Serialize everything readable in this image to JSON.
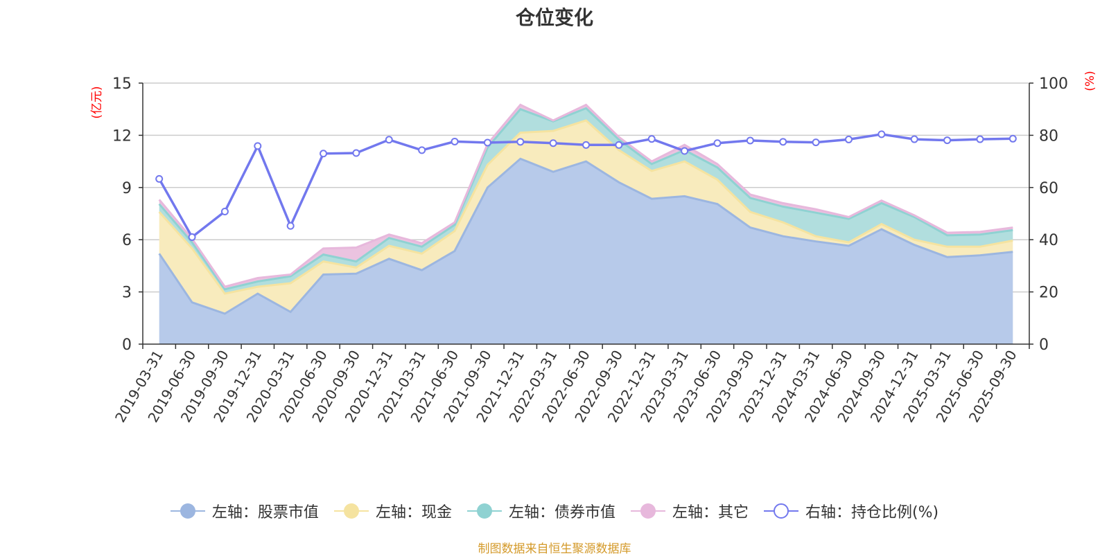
{
  "chart_data": {
    "type": "area",
    "title": "仓位变化",
    "categories": [
      "2019-03-31",
      "2019-06-30",
      "2019-09-30",
      "2019-12-31",
      "2020-03-31",
      "2020-06-30",
      "2020-09-30",
      "2020-12-31",
      "2021-03-31",
      "2021-06-30",
      "2021-09-30",
      "2021-12-31",
      "2022-03-31",
      "2022-06-30",
      "2022-09-30",
      "2022-12-31",
      "2023-03-31",
      "2023-06-30",
      "2023-09-30",
      "2023-12-31",
      "2024-03-31",
      "2024-06-30",
      "2024-09-30",
      "2024-12-31",
      "2025-03-31",
      "2025-06-30",
      "2025-09-30"
    ],
    "left_axis": {
      "label": "(亿元)",
      "ylim": [
        0,
        15
      ],
      "ticks": [
        "0",
        "3",
        "6",
        "9",
        "12",
        "15"
      ]
    },
    "right_axis": {
      "label": "(%)",
      "ylim": [
        0,
        100
      ],
      "ticks": [
        "0",
        "20",
        "40",
        "60",
        "80",
        "100"
      ]
    },
    "series": [
      {
        "name": "左轴：股票市值",
        "axis": "left",
        "stack": true,
        "color": "#9cb6e0",
        "fill": "#b7caea",
        "values": [
          5.2,
          2.4,
          1.75,
          2.9,
          1.85,
          4.0,
          4.05,
          4.9,
          4.25,
          5.35,
          9.0,
          10.65,
          9.9,
          10.5,
          9.3,
          8.35,
          8.5,
          8.05,
          6.7,
          6.2,
          5.9,
          5.65,
          6.6,
          5.7,
          5.0,
          5.1,
          5.3
        ]
      },
      {
        "name": "左轴：现金",
        "axis": "left",
        "stack": true,
        "color": "#f5e3a0",
        "fill": "#f8ebbd",
        "values": [
          2.4,
          3.1,
          1.15,
          0.4,
          1.65,
          0.75,
          0.35,
          0.75,
          0.95,
          1.15,
          1.3,
          1.5,
          2.35,
          2.35,
          1.85,
          1.6,
          2.0,
          1.4,
          0.9,
          0.8,
          0.3,
          0.2,
          0.3,
          0.3,
          0.6,
          0.5,
          0.65
        ]
      },
      {
        "name": "左轴：债券市值",
        "axis": "left",
        "stack": true,
        "color": "#8fd2d2",
        "fill": "#b1dede",
        "values": [
          0.45,
          0.35,
          0.25,
          0.3,
          0.4,
          0.4,
          0.35,
          0.45,
          0.4,
          0.35,
          1.0,
          1.35,
          0.55,
          0.7,
          0.6,
          0.4,
          0.65,
          0.7,
          0.8,
          0.9,
          1.35,
          1.35,
          1.2,
          1.3,
          0.65,
          0.7,
          0.6
        ]
      },
      {
        "name": "左轴：其它",
        "axis": "left",
        "stack": true,
        "color": "#e7b8dc",
        "fill": "#ebc3e0",
        "values": [
          0.25,
          0.2,
          0.15,
          0.2,
          0.1,
          0.35,
          0.8,
          0.2,
          0.2,
          0.15,
          0.2,
          0.25,
          0.05,
          0.2,
          0.15,
          0.15,
          0.3,
          0.2,
          0.2,
          0.2,
          0.2,
          0.1,
          0.15,
          0.1,
          0.15,
          0.15,
          0.15
        ]
      },
      {
        "name": "右轴：持仓比例(%)",
        "axis": "right",
        "stack": false,
        "color": "#7278ee",
        "values": [
          63.3,
          41.0,
          50.8,
          75.9,
          45.3,
          73.0,
          73.2,
          78.3,
          74.3,
          77.6,
          77.2,
          77.5,
          77.0,
          76.3,
          76.3,
          78.6,
          74.0,
          77.0,
          78.0,
          77.5,
          77.3,
          78.4,
          80.4,
          78.5,
          78.1,
          78.5,
          78.7
        ]
      }
    ],
    "legend_position": "bottom-center",
    "grid": true
  },
  "footer": {
    "source_text": "制图数据来自恒生聚源数据库",
    "source_color": "#d49a2a"
  }
}
